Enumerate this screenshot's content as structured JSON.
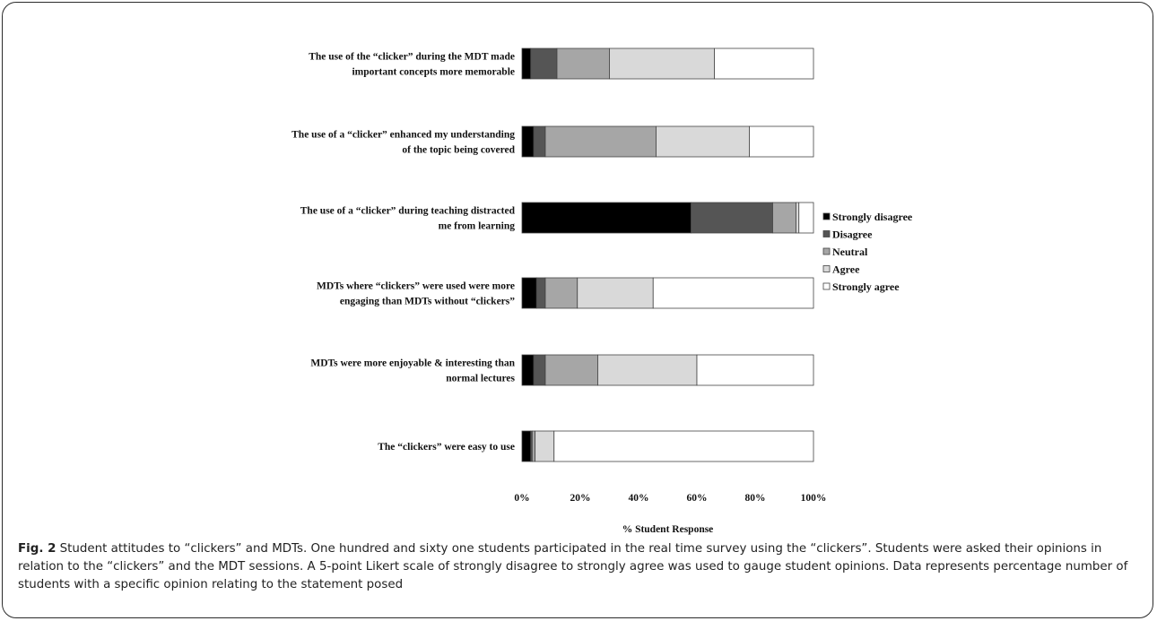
{
  "chart_data": {
    "type": "bar",
    "orientation": "horizontal",
    "stacked": true,
    "xlabel": "% Student Response",
    "xlim": [
      0,
      100
    ],
    "xticks": [
      "0%",
      "20%",
      "40%",
      "60%",
      "80%",
      "100%"
    ],
    "legend_position": "right",
    "categories": [
      [
        "The use of the “clicker” during the MDT made",
        "important concepts more memorable"
      ],
      [
        "The use of a “clicker” enhanced my understanding",
        "of the topic being covered"
      ],
      [
        "The use of a “clicker” during teaching distracted",
        "me from learning"
      ],
      [
        "MDTs where “clickers” were used were more",
        "engaging than MDTs without “clickers”"
      ],
      [
        "MDTs were more enjoyable & interesting than",
        "normal lectures"
      ],
      [
        "The “clickers” were easy to use"
      ]
    ],
    "series": [
      {
        "name": "Strongly disagree",
        "color": "#000000",
        "values": [
          3,
          4,
          58,
          5,
          4,
          3
        ]
      },
      {
        "name": "Disagree",
        "color": "#555555",
        "values": [
          9,
          4,
          28,
          3,
          4,
          0.5
        ]
      },
      {
        "name": "Neutral",
        "color": "#a6a6a6",
        "values": [
          18,
          38,
          8,
          11,
          18,
          1
        ]
      },
      {
        "name": "Agree",
        "color": "#d9d9d9",
        "values": [
          36,
          32,
          1,
          26,
          34,
          6.5
        ]
      },
      {
        "name": "Strongly agree",
        "color": "#ffffff",
        "values": [
          34,
          22,
          5,
          55,
          40,
          89
        ]
      }
    ]
  },
  "caption": {
    "label": "Fig. 2",
    "text": " Student attitudes to “clickers” and MDTs. One hundred and sixty one students participated in the real time survey using the “clickers”. Students were asked their opinions in relation to the “clickers” and the MDT sessions. A 5-point Likert scale of strongly disagree to strongly agree was used to gauge student opinions. Data represents percentage number of students with a specific opinion relating to the statement posed"
  }
}
